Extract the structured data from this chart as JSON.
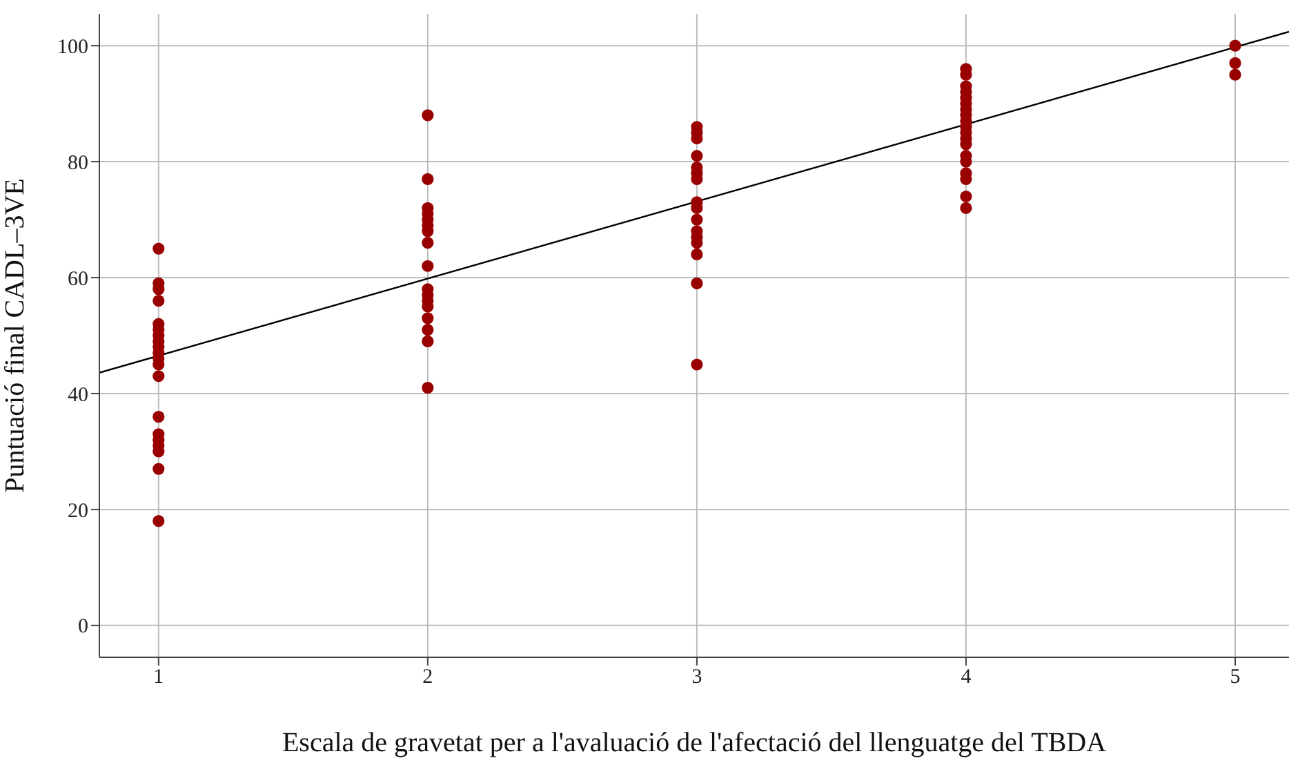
{
  "chart_data": {
    "type": "scatter",
    "xlabel": "Escala de gravetat per a l'avaluació de l'afectació del llenguatge del TBDA",
    "ylabel": "Puntuació final CADL–3VE",
    "xlim": [
      0.78,
      5.2
    ],
    "ylim": [
      -5.5,
      105.5
    ],
    "xticks": [
      1,
      2,
      3,
      4,
      5
    ],
    "yticks": [
      0,
      20,
      40,
      60,
      80,
      100
    ],
    "grid": true,
    "series": [
      {
        "marker": "circle",
        "color": "#990000",
        "x": [
          1,
          1,
          1,
          1,
          1,
          1,
          1,
          1,
          1,
          1,
          1,
          1,
          1,
          1,
          1,
          1,
          1,
          1,
          1,
          1,
          2,
          2,
          2,
          2,
          2,
          2,
          2,
          2,
          2,
          2,
          2,
          2,
          2,
          2,
          2,
          2,
          2,
          3,
          3,
          3,
          3,
          3,
          3,
          3,
          3,
          3,
          3,
          3,
          3,
          3,
          3,
          3,
          3,
          4,
          4,
          4,
          4,
          4,
          4,
          4,
          4,
          4,
          4,
          4,
          4,
          4,
          4,
          4,
          4,
          4,
          4,
          4,
          5,
          5,
          5
        ],
        "values": [
          65,
          59,
          58,
          56,
          52,
          51,
          50,
          49,
          48,
          47,
          46,
          45,
          43,
          36,
          33,
          32,
          31,
          30,
          27,
          18,
          88,
          77,
          72,
          71,
          70,
          69,
          68,
          66,
          62,
          58,
          57,
          56,
          55,
          53,
          51,
          49,
          41,
          86,
          85,
          84,
          81,
          79,
          78,
          77,
          73,
          72,
          70,
          68,
          67,
          66,
          64,
          59,
          45,
          96,
          95,
          93,
          92,
          91,
          90,
          89,
          88,
          87,
          86,
          85,
          84,
          83,
          81,
          80,
          78,
          77,
          74,
          72,
          100,
          97,
          95
        ]
      },
      {
        "type": "line",
        "marker": "none",
        "color": "#000000",
        "x": [
          0.78,
          5.2
        ],
        "values": [
          43.6,
          102.4
        ]
      }
    ]
  }
}
